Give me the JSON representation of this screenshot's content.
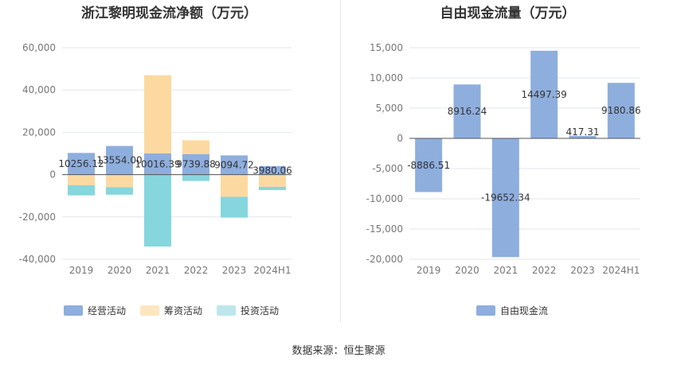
{
  "source_label": "数据来源：恒生聚源",
  "colors": {
    "operating": "#8eaedd",
    "financing": "#fcd9a0",
    "investing": "#86d6dd",
    "free_cash_flow": "#8eaedd",
    "grid": "#e3e6ee",
    "axis_text": "#777777"
  },
  "chart_data": [
    {
      "type": "bar",
      "stacked": true,
      "title": "浙江黎明现金流净额（万元）",
      "categories": [
        "2019",
        "2020",
        "2021",
        "2022",
        "2023",
        "2024H1"
      ],
      "ylim": [
        -40000,
        60000
      ],
      "yticks": [
        60000,
        40000,
        20000,
        0,
        -20000,
        -40000
      ],
      "ytick_labels": [
        "60,000",
        "40,000",
        "20,000",
        "0",
        "-20,000",
        "-40,000"
      ],
      "legend_position": "bottom",
      "series": [
        {
          "name": "经营活动",
          "values": [
            10256.12,
            13554.0,
            10016.39,
            9739.88,
            9094.72,
            3980.06
          ]
        },
        {
          "name": "筹资活动",
          "values": [
            -5000,
            -6000,
            37000,
            6500,
            -10500,
            -5800
          ]
        },
        {
          "name": "投资活动",
          "values": [
            -4800,
            -3500,
            -34000,
            -3000,
            -9800,
            -1500
          ]
        }
      ],
      "data_labels": [
        "10256.12",
        "13554.00",
        "10016.39",
        "9739.88",
        "9094.72",
        "3980.06"
      ]
    },
    {
      "type": "bar",
      "title": "自由现金流量（万元）",
      "categories": [
        "2019",
        "2020",
        "2021",
        "2022",
        "2023",
        "2024H1"
      ],
      "ylim": [
        -20000,
        15000
      ],
      "yticks": [
        15000,
        10000,
        5000,
        0,
        -5000,
        -10000,
        -15000,
        -20000
      ],
      "ytick_labels": [
        "15,000",
        "10,000",
        "5,000",
        "0",
        "-5,000",
        "-10,000",
        "-15,000",
        "-20,000"
      ],
      "legend_position": "bottom",
      "series": [
        {
          "name": "自由现金流",
          "values": [
            -8886.51,
            8916.24,
            -19652.34,
            14497.39,
            417.31,
            9180.86
          ]
        }
      ],
      "data_labels": [
        "-8886.51",
        "8916.24",
        "-19652.34",
        "14497.39",
        "417.31",
        "9180.86"
      ]
    }
  ]
}
